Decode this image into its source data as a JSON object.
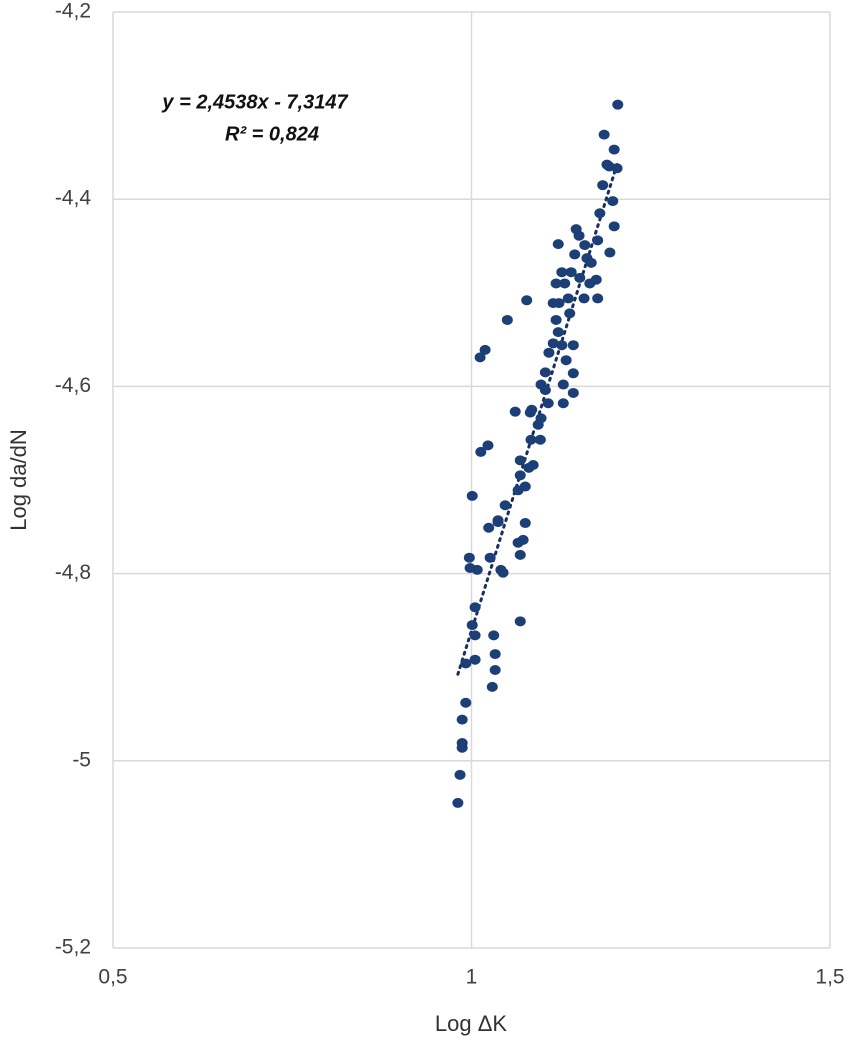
{
  "chart_data": {
    "type": "scatter",
    "x_label": "Log ΔK",
    "y_label": "Log da/dN",
    "annotation": [
      "y = 2,4538x - 7,3147",
      "R² = 0,824"
    ],
    "trendline": {
      "slope": 2.4538,
      "intercept": -7.3147,
      "color": "#1b2f5e"
    },
    "xlim": [
      0.5,
      1.5
    ],
    "xticks": [
      {
        "value": 0.5,
        "label": "0,5"
      },
      1,
      {
        "value": 1.5,
        "label": "1,5"
      }
    ],
    "ylim": [
      -5.2,
      -4.2
    ],
    "yticks": [
      {
        "value": -5.2,
        "label": "-5,2"
      },
      -5,
      {
        "value": -4.8,
        "label": "-4,8"
      },
      {
        "value": -4.6,
        "label": "-4,6"
      },
      {
        "value": -4.4,
        "label": "-4,4"
      },
      {
        "value": -4.2,
        "label": "-4,2"
      }
    ],
    "grid": true,
    "color": "#1d3f78",
    "x": [
      1.204,
      1.185,
      1.199,
      1.189,
      1.192,
      1.203,
      1.183,
      1.197,
      1.179,
      1.199,
      1.146,
      1.15,
      1.158,
      1.176,
      1.193,
      1.121,
      1.144,
      1.161,
      1.139,
      1.167,
      1.151,
      1.165,
      1.174,
      1.176,
      1.157,
      1.135,
      1.126,
      1.118,
      1.13,
      1.114,
      1.122,
      1.137,
      1.077,
      1.05,
      1.118,
      1.121,
      1.126,
      1.114,
      1.142,
      1.108,
      1.132,
      1.142,
      1.142,
      1.128,
      1.128,
      1.103,
      1.097,
      1.103,
      1.107,
      1.097,
      1.084,
      1.082,
      1.093,
      1.061,
      1.019,
      1.012,
      1.083,
      1.096,
      1.086,
      1.08,
      1.068,
      1.068,
      1.075,
      1.065,
      1.075,
      1.065,
      1.068,
      1.047,
      1.037,
      1.037,
      1.041,
      1.044,
      1.026,
      1.024,
      1.013,
      1.023,
      1.001,
      0.997,
      0.998,
      1.008,
      1.005,
      1.001,
      1.005,
      1.068,
      1.031,
      1.033,
      1.033,
      1.029,
      1.005,
      0.992,
      0.992,
      0.987,
      0.987,
      0.987,
      0.984,
      0.981,
      1.072
    ],
    "y": [
      -4.299,
      -4.331,
      -4.347,
      -4.363,
      -4.365,
      -4.367,
      -4.385,
      -4.402,
      -4.415,
      -4.429,
      -4.432,
      -4.439,
      -4.449,
      -4.444,
      -4.457,
      -4.448,
      -4.459,
      -4.463,
      -4.478,
      -4.468,
      -4.484,
      -4.49,
      -4.486,
      -4.506,
      -4.506,
      -4.506,
      -4.478,
      -4.49,
      -4.49,
      -4.511,
      -4.511,
      -4.522,
      -4.508,
      -4.529,
      -4.529,
      -4.542,
      -4.556,
      -4.554,
      -4.556,
      -4.564,
      -4.572,
      -4.586,
      -4.607,
      -4.598,
      -4.618,
      -4.585,
      -4.598,
      -4.604,
      -4.618,
      -4.634,
      -4.625,
      -4.628,
      -4.641,
      -4.627,
      -4.561,
      -4.569,
      -4.657,
      -4.657,
      -4.684,
      -4.687,
      -4.679,
      -4.695,
      -4.707,
      -4.711,
      -4.746,
      -4.767,
      -4.78,
      -4.727,
      -4.743,
      -4.745,
      -4.796,
      -4.799,
      -4.783,
      -4.751,
      -4.67,
      -4.663,
      -4.717,
      -4.783,
      -4.794,
      -4.796,
      -4.836,
      -4.855,
      -4.866,
      -4.851,
      -4.866,
      -4.886,
      -4.903,
      -4.921,
      -4.892,
      -4.896,
      -4.938,
      -4.956,
      -4.981,
      -4.986,
      -5.015,
      -5.045,
      -4.764
    ]
  }
}
